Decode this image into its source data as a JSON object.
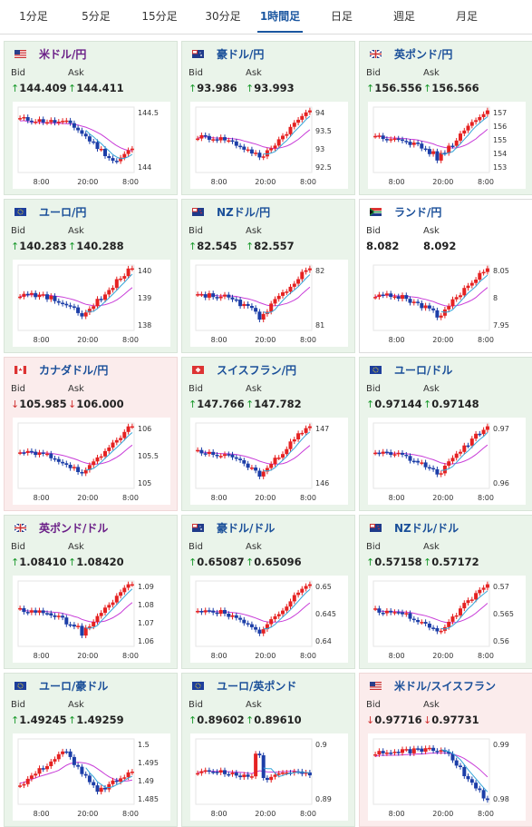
{
  "tabs": [
    "1分足",
    "5分足",
    "15分足",
    "30分足",
    "1時間足",
    "日足",
    "週足",
    "月足"
  ],
  "active_tab": 4,
  "labels": {
    "bid": "Bid",
    "ask": "Ask"
  },
  "colors": {
    "up_arrow": "#1a9a2c",
    "down_arrow": "#d03030",
    "candle_up": "#e52222",
    "candle_down": "#1c3ea8",
    "ma_short": "#35a5d8",
    "ma_long": "#c83cd8"
  },
  "cards": [
    {
      "name": "米ドル/円",
      "flag": "us-flag",
      "style": "up",
      "purple": true,
      "bid": "144.409",
      "ask": "144.411",
      "bid_dir": "up",
      "ask_dir": "up",
      "ticks": [
        "144.5",
        "144"
      ],
      "xlabels": [
        "8:00",
        "20:00",
        "8:00"
      ],
      "pattern": "usdjpy"
    },
    {
      "name": "豪ドル/円",
      "flag": "au-flag",
      "style": "up",
      "purple": false,
      "bid": "93.986",
      "ask": "93.993",
      "bid_dir": "up",
      "ask_dir": "up",
      "ticks": [
        "94",
        "93.5",
        "93",
        "92.5"
      ],
      "xlabels": [
        "8:00",
        "20:00",
        "8:00"
      ],
      "pattern": "vrise"
    },
    {
      "name": "英ポンド/円",
      "flag": "gb-flag",
      "style": "up",
      "purple": false,
      "bid": "156.556",
      "ask": "156.566",
      "bid_dir": "up",
      "ask_dir": "up",
      "ticks": [
        "157",
        "156",
        "155",
        "154",
        "153"
      ],
      "xlabels": [
        "8:00",
        "20:00",
        "8:00"
      ],
      "pattern": "vrise"
    },
    {
      "name": "ユーロ/円",
      "flag": "eu-flag",
      "style": "up",
      "purple": false,
      "bid": "140.283",
      "ask": "140.288",
      "bid_dir": "up",
      "ask_dir": "up",
      "ticks": [
        "140",
        "139",
        "138"
      ],
      "xlabels": [
        "8:00",
        "20:00",
        "8:00"
      ],
      "pattern": "vrise"
    },
    {
      "name": "NZドル/円",
      "flag": "nz-flag",
      "style": "up",
      "purple": false,
      "bid": "82.545",
      "ask": "82.557",
      "bid_dir": "up",
      "ask_dir": "up",
      "ticks": [
        "82",
        "81"
      ],
      "xlabels": [
        "8:00",
        "20:00",
        "8:00"
      ],
      "pattern": "vrise"
    },
    {
      "name": "ランド/円",
      "flag": "za-flag",
      "style": "plain",
      "purple": false,
      "bid": "8.082",
      "ask": "8.092",
      "bid_dir": "none",
      "ask_dir": "none",
      "ticks": [
        "8.05",
        "8",
        "7.95"
      ],
      "xlabels": [
        "8:00",
        "20:00",
        "8:00"
      ],
      "pattern": "vrise"
    },
    {
      "name": "カナダドル/円",
      "flag": "ca-flag",
      "style": "down",
      "purple": false,
      "bid": "105.985",
      "ask": "106.000",
      "bid_dir": "down",
      "ask_dir": "down",
      "ticks": [
        "106",
        "105.5",
        "105"
      ],
      "xlabels": [
        "8:00",
        "20:00",
        "8:00"
      ],
      "pattern": "vrise"
    },
    {
      "name": "スイスフラン/円",
      "flag": "ch-flag",
      "style": "up",
      "purple": false,
      "bid": "147.766",
      "ask": "147.782",
      "bid_dir": "up",
      "ask_dir": "up",
      "ticks": [
        "147",
        "146"
      ],
      "xlabels": [
        "8:00",
        "20:00",
        "8:00"
      ],
      "pattern": "vrise"
    },
    {
      "name": "ユーロ/ドル",
      "flag": "eu-flag",
      "style": "up",
      "purple": false,
      "bid": "0.97144",
      "ask": "0.97148",
      "bid_dir": "up",
      "ask_dir": "up",
      "ticks": [
        "0.97",
        "0.96"
      ],
      "xlabels": [
        "8:00",
        "20:00",
        "8:00"
      ],
      "pattern": "vrise"
    },
    {
      "name": "英ポンド/ドル",
      "flag": "gb-flag",
      "style": "up",
      "purple": true,
      "bid": "1.08410",
      "ask": "1.08420",
      "bid_dir": "up",
      "ask_dir": "up",
      "ticks": [
        "1.09",
        "1.08",
        "1.07",
        "1.06"
      ],
      "xlabels": [
        "8:00",
        "20:00",
        "8:00"
      ],
      "pattern": "vrise"
    },
    {
      "name": "豪ドル/ドル",
      "flag": "au-flag",
      "style": "up",
      "purple": false,
      "bid": "0.65087",
      "ask": "0.65096",
      "bid_dir": "up",
      "ask_dir": "up",
      "ticks": [
        "0.65",
        "0.645",
        "0.64"
      ],
      "xlabels": [
        "8:00",
        "20:00",
        "8:00"
      ],
      "pattern": "vrise"
    },
    {
      "name": "NZドル/ドル",
      "flag": "nz-flag",
      "style": "up",
      "purple": false,
      "bid": "0.57158",
      "ask": "0.57172",
      "bid_dir": "up",
      "ask_dir": "up",
      "ticks": [
        "0.57",
        "0.565",
        "0.56"
      ],
      "xlabels": [
        "8:00",
        "20:00",
        "8:00"
      ],
      "pattern": "vrise"
    },
    {
      "name": "ユーロ/豪ドル",
      "flag": "eu-flag",
      "style": "up",
      "purple": false,
      "bid": "1.49245",
      "ask": "1.49259",
      "bid_dir": "up",
      "ask_dir": "up",
      "ticks": [
        "1.5",
        "1.495",
        "1.49",
        "1.485"
      ],
      "xlabels": [
        "8:00",
        "20:00",
        "8:00"
      ],
      "pattern": "hump"
    },
    {
      "name": "ユーロ/英ポンド",
      "flag": "eu-flag",
      "style": "up",
      "purple": false,
      "bid": "0.89602",
      "ask": "0.89610",
      "bid_dir": "up",
      "ask_dir": "up",
      "ticks": [
        "0.9",
        "0.89"
      ],
      "xlabels": [
        "8:00",
        "20:00",
        "8:00"
      ],
      "pattern": "flat"
    },
    {
      "name": "米ドル/スイスフラン",
      "flag": "us-flag",
      "style": "down",
      "purple": false,
      "bid": "0.97716",
      "ask": "0.97731",
      "bid_dir": "down",
      "ask_dir": "down",
      "ticks": [
        "0.99",
        "0.98"
      ],
      "xlabels": [
        "8:00",
        "20:00",
        "8:00"
      ],
      "pattern": "fall"
    }
  ]
}
